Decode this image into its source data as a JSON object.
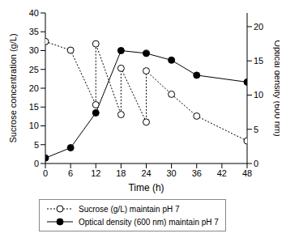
{
  "chart_data": {
    "type": "line",
    "xlabel": "Time (h)",
    "ylabel": "Sucrose concentration (g/L)",
    "y2label": "Optical density (600 nm)",
    "xlim": [
      0,
      48
    ],
    "xticks": [
      0,
      6,
      12,
      18,
      24,
      30,
      36,
      42,
      48
    ],
    "ylim": [
      0,
      40
    ],
    "yticks": [
      0,
      5,
      10,
      15,
      20,
      25,
      30,
      35,
      40
    ],
    "y2lim": [
      0,
      22
    ],
    "y2ticks": [
      0,
      5,
      10,
      15,
      20
    ],
    "legend": "bottom",
    "series": [
      {
        "name": "Sucrose (g/L) maintain pH 7",
        "color": "#000000",
        "marker": "open_circle",
        "line_style": "dotted",
        "x": [
          0,
          6,
          12,
          12,
          18,
          18,
          24,
          24,
          30,
          36,
          48
        ],
        "values": [
          32.4,
          30.1,
          15.6,
          31.8,
          13,
          25.3,
          11,
          24.6,
          18.4,
          12.6,
          6
        ]
      },
      {
        "name": "Optical density (600 nm) maintain pH 7",
        "color": "#000000",
        "marker": "circle",
        "line_style": "solid",
        "axis": "y2",
        "x": [
          0,
          6,
          12,
          18,
          24,
          30,
          36,
          48
        ],
        "values": [
          0.8,
          2.3,
          7.4,
          16.5,
          16.1,
          15.1,
          12.9,
          11.9
        ]
      }
    ]
  }
}
